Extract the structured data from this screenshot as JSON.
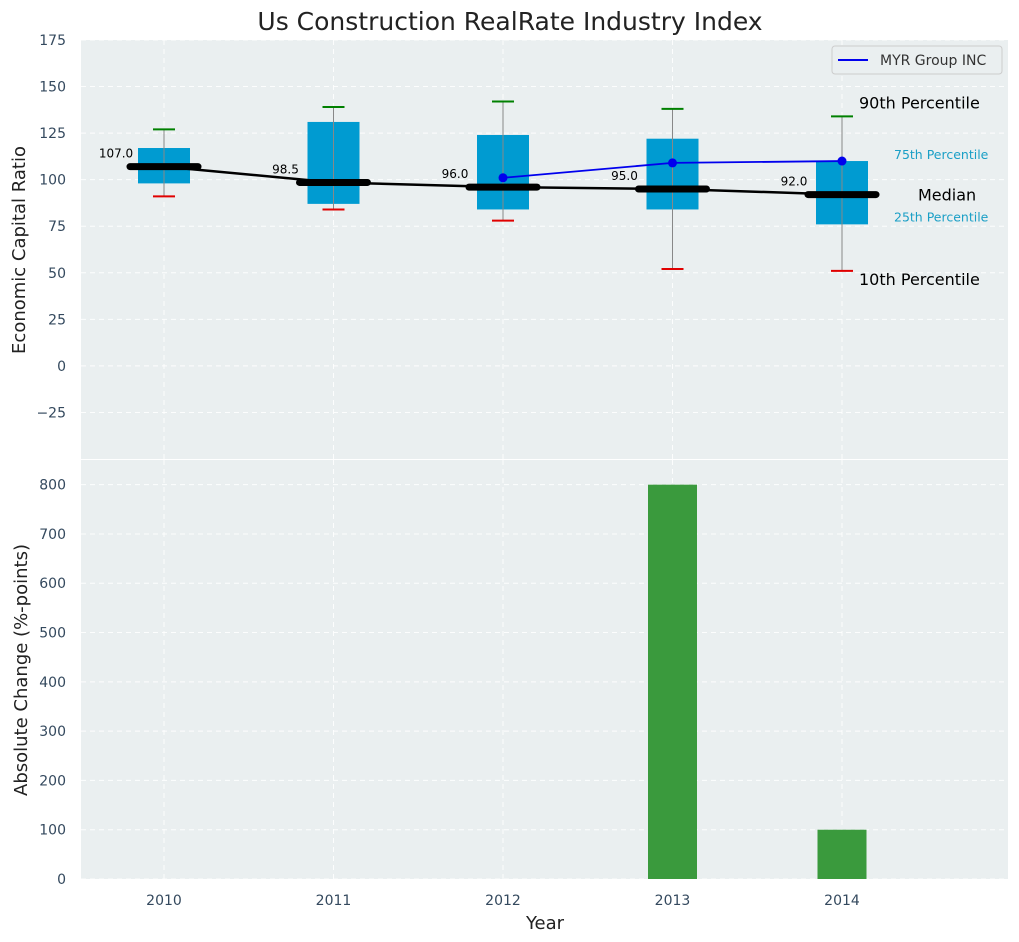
{
  "chart_data": {
    "title": "Us Construction RealRate Industry Index",
    "top": {
      "type": "box",
      "ylabel": "Economic Capital Ratio",
      "ylim": [
        -50,
        175
      ],
      "yticks": [
        -25,
        0,
        25,
        50,
        75,
        100,
        125,
        150,
        175
      ],
      "ytick_labels": [
        "−25",
        "0",
        "25",
        "50",
        "75",
        "100",
        "125",
        "150",
        "175"
      ],
      "categories": [
        "2010",
        "2011",
        "2012",
        "2013",
        "2014"
      ],
      "boxes": [
        {
          "year": "2010",
          "p10": 91,
          "p25": 98,
          "median": 107.0,
          "p75": 117,
          "p90": 127,
          "median_label": "107.0"
        },
        {
          "year": "2011",
          "p10": 84,
          "p25": 87,
          "median": 98.5,
          "p75": 131,
          "p90": 139,
          "median_label": "98.5"
        },
        {
          "year": "2012",
          "p10": 78,
          "p25": 84,
          "median": 96.0,
          "p75": 124,
          "p90": 142,
          "median_label": "96.0"
        },
        {
          "year": "2013",
          "p10": 52,
          "p25": 84,
          "median": 95.0,
          "p75": 122,
          "p90": 138,
          "median_label": "95.0"
        },
        {
          "year": "2014",
          "p10": 51,
          "p25": 76,
          "median": 92.0,
          "p75": 110,
          "p90": 134,
          "median_label": "92.0"
        }
      ],
      "series": [
        {
          "name": "MYR Group INC",
          "x": [
            "2012",
            "2013",
            "2014"
          ],
          "values": [
            101,
            109,
            110
          ],
          "color": "#0000ee"
        }
      ],
      "percentile_labels": {
        "p90": "90th Percentile",
        "p75": "75th Percentile",
        "median": "Median",
        "p25": "25th Percentile",
        "p10": "10th Percentile"
      },
      "legend_position": "top-right",
      "grid": true
    },
    "bottom": {
      "type": "bar",
      "xlabel": "Year",
      "ylabel": "Absolute Change (%-points)",
      "ylim": [
        0,
        850
      ],
      "yticks": [
        0,
        100,
        200,
        300,
        400,
        500,
        600,
        700,
        800
      ],
      "categories": [
        "2010",
        "2011",
        "2012",
        "2013",
        "2014"
      ],
      "values": [
        0,
        0,
        0,
        800,
        100
      ],
      "color": "#3a9a3d",
      "grid": true
    },
    "colors": {
      "box": "#009bd1",
      "median": "#000000",
      "p90_cap": "#008000",
      "p10_cap": "#e00000",
      "whisker": "#888888",
      "panel_bg": "#eaeff0"
    }
  }
}
